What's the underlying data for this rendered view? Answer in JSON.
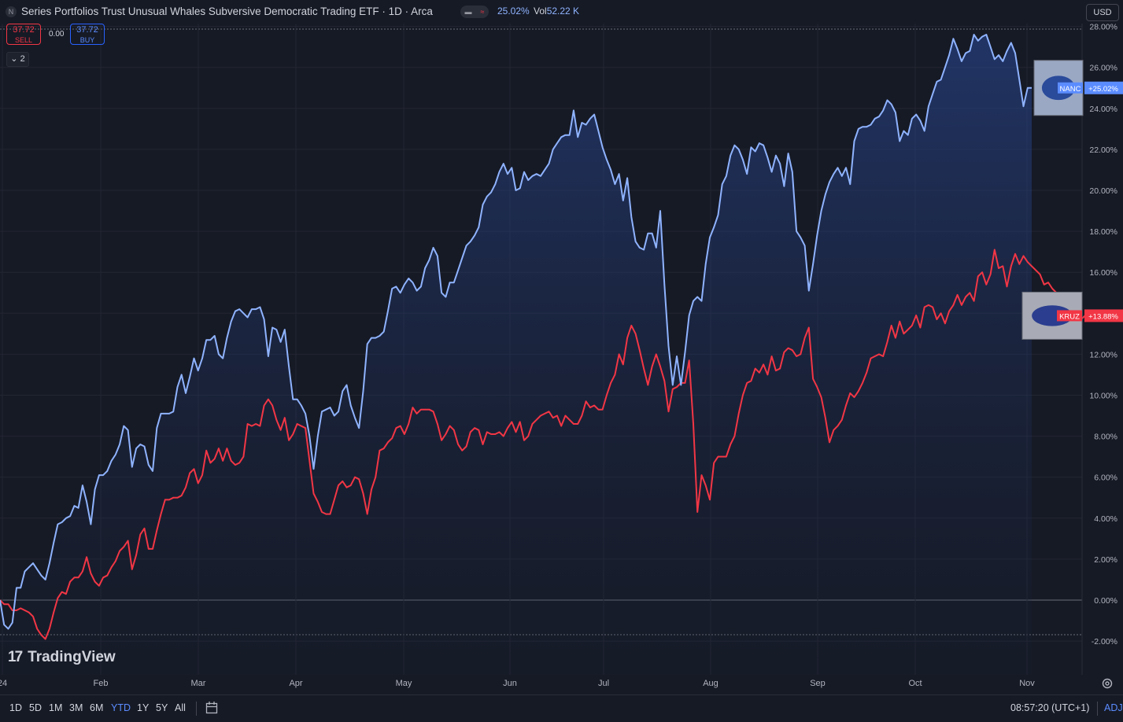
{
  "header": {
    "title": "Series Portfolios Trust Unusual Whales Subversive Democratic Trading ETF · 1D · Arca",
    "logo_letter": "N",
    "change_pct": "25.02%",
    "vol_label": "Vol",
    "vol_value": "52.22 K"
  },
  "trade": {
    "sell_price": "37.72",
    "sell_label": "SELL",
    "spread": "0.00",
    "buy_price": "37.72",
    "buy_label": "BUY"
  },
  "indicators_toggle": "2",
  "currency": "USD",
  "watermark": "TradingView",
  "timeframes": [
    "1D",
    "5D",
    "1M",
    "3M",
    "6M",
    "YTD",
    "1Y",
    "5Y",
    "All"
  ],
  "active_timeframe": "YTD",
  "clock": "08:57:20 (UTC+1)",
  "adj": "ADJ",
  "colors": {
    "background": "#161a25",
    "nanc_line": "#8fb3ff",
    "kruz_line": "#f23645",
    "grid": "#232632"
  },
  "chart_data": {
    "type": "line",
    "y_unit": "%",
    "ylim": [
      -2.5,
      28.5
    ],
    "yticks": [
      "28.00%",
      "26.00%",
      "24.00%",
      "22.00%",
      "20.00%",
      "18.00%",
      "16.00%",
      "14.00%",
      "12.00%",
      "10.00%",
      "8.00%",
      "6.00%",
      "4.00%",
      "2.00%",
      "0.00%",
      "-2.00%"
    ],
    "xticks": [
      "24",
      "Feb",
      "Mar",
      "Apr",
      "May",
      "Jun",
      "Jul",
      "Aug",
      "Sep",
      "Oct",
      "Nov"
    ],
    "grid": true,
    "series": [
      {
        "name": "NANC",
        "last_label": "+25.02%",
        "values": [
          0.0,
          -1.2,
          -1.4,
          -1.1,
          0.6,
          0.6,
          1.4,
          1.6,
          1.8,
          1.5,
          1.2,
          1.0,
          1.8,
          2.8,
          3.7,
          3.8,
          4.0,
          4.1,
          4.6,
          4.5,
          5.6,
          4.8,
          3.7,
          5.4,
          6.1,
          6.1,
          6.3,
          6.8,
          7.1,
          7.6,
          8.5,
          8.3,
          6.5,
          7.4,
          7.6,
          7.5,
          6.6,
          6.3,
          8.4,
          9.1,
          9.1,
          9.1,
          9.2,
          10.4,
          11.0,
          10.1,
          10.9,
          11.8,
          11.2,
          11.8,
          12.7,
          12.7,
          12.9,
          12.0,
          11.8,
          12.8,
          13.6,
          14.1,
          14.2,
          14.0,
          13.8,
          14.2,
          14.2,
          14.3,
          13.7,
          11.9,
          13.3,
          13.2,
          12.6,
          13.2,
          11.4,
          9.8,
          9.8,
          9.5,
          9.1,
          8.0,
          6.4,
          8.0,
          9.2,
          9.3,
          9.4,
          9.0,
          9.2,
          10.2,
          10.5,
          9.5,
          8.9,
          8.4,
          10.2,
          12.5,
          12.8,
          12.8,
          12.9,
          13.1,
          14.1,
          15.2,
          15.3,
          15.0,
          15.4,
          15.7,
          15.5,
          15.1,
          15.3,
          16.2,
          16.6,
          17.2,
          16.8,
          15.0,
          14.8,
          15.5,
          15.5,
          16.1,
          16.7,
          17.3,
          17.5,
          17.8,
          18.2,
          19.3,
          19.7,
          19.9,
          20.3,
          20.9,
          21.3,
          20.8,
          21.1,
          20.0,
          20.1,
          20.9,
          20.5,
          20.7,
          20.8,
          20.7,
          21.0,
          21.3,
          22.0,
          22.3,
          22.6,
          22.7,
          22.7,
          23.9,
          22.6,
          23.3,
          23.2,
          23.5,
          23.7,
          22.9,
          22.1,
          21.5,
          21.0,
          20.3,
          20.8,
          19.5,
          20.6,
          18.7,
          17.5,
          17.2,
          17.1,
          17.9,
          17.9,
          17.2,
          19.0,
          15.4,
          12.4,
          10.5,
          11.9,
          10.5,
          12.1,
          13.9,
          14.6,
          14.8,
          14.6,
          16.4,
          17.7,
          18.2,
          18.8,
          20.3,
          20.7,
          21.7,
          22.2,
          22.0,
          21.5,
          20.8,
          22.1,
          21.9,
          22.3,
          22.2,
          21.6,
          20.9,
          21.7,
          21.3,
          20.2,
          21.8,
          20.9,
          18.0,
          17.7,
          17.3,
          15.1,
          16.4,
          17.8,
          19.0,
          19.8,
          20.4,
          20.8,
          21.1,
          20.7,
          21.1,
          20.3,
          22.4,
          23.0,
          23.1,
          23.1,
          23.2,
          23.5,
          23.6,
          23.9,
          24.4,
          24.2,
          23.8,
          22.4,
          22.9,
          22.7,
          23.5,
          23.7,
          23.4,
          22.9,
          24.1,
          24.7,
          25.3,
          25.4,
          26.0,
          26.6,
          27.4,
          26.9,
          26.3,
          26.7,
          26.8,
          27.6,
          27.3,
          27.5,
          27.6,
          27.0,
          26.4,
          26.6,
          26.3,
          26.8,
          27.2,
          26.7,
          25.4,
          24.1,
          25.0,
          25.0
        ]
      },
      {
        "name": "KRUZ",
        "last_label": "+13.88%",
        "values": [
          0.0,
          -0.2,
          -0.2,
          -0.5,
          -0.5,
          -0.4,
          -0.5,
          -0.6,
          -0.8,
          -1.4,
          -1.7,
          -1.9,
          -1.4,
          -0.6,
          0.1,
          0.4,
          0.3,
          0.9,
          1.1,
          1.1,
          1.4,
          2.1,
          1.3,
          0.9,
          0.7,
          1.1,
          1.2,
          1.6,
          1.9,
          2.4,
          2.6,
          2.9,
          1.5,
          2.2,
          3.2,
          3.5,
          2.5,
          2.5,
          3.4,
          4.2,
          4.9,
          4.9,
          5.0,
          5.0,
          5.1,
          5.5,
          6.2,
          6.4,
          5.7,
          6.1,
          7.3,
          6.7,
          6.9,
          7.4,
          6.8,
          7.4,
          6.8,
          6.6,
          6.7,
          7.0,
          8.6,
          8.5,
          8.6,
          8.5,
          9.5,
          9.8,
          9.5,
          8.8,
          8.3,
          8.9,
          7.8,
          8.1,
          8.6,
          8.5,
          8.4,
          6.8,
          5.2,
          4.8,
          4.3,
          4.2,
          4.2,
          4.9,
          5.6,
          5.8,
          5.5,
          5.6,
          6.0,
          5.9,
          5.2,
          4.2,
          5.4,
          6.0,
          7.3,
          7.4,
          7.7,
          7.9,
          8.4,
          8.5,
          8.1,
          8.6,
          9.4,
          9.1,
          9.3,
          9.3,
          9.3,
          9.2,
          8.6,
          7.8,
          8.1,
          8.5,
          8.3,
          7.6,
          7.3,
          7.5,
          8.2,
          8.4,
          8.3,
          7.6,
          8.2,
          8.1,
          8.1,
          8.2,
          8.0,
          8.4,
          8.7,
          8.2,
          8.7,
          7.8,
          8.0,
          8.6,
          8.8,
          9.0,
          9.1,
          9.2,
          8.9,
          9.0,
          8.5,
          9.0,
          8.8,
          8.6,
          8.6,
          9.0,
          9.7,
          9.4,
          9.5,
          9.3,
          9.3,
          10.0,
          10.6,
          11.0,
          12.0,
          11.5,
          12.8,
          13.4,
          13.0,
          12.2,
          11.3,
          10.5,
          11.4,
          12.0,
          11.4,
          10.7,
          9.2,
          10.3,
          10.4,
          10.6,
          10.6,
          11.7,
          8.6,
          4.3,
          6.1,
          5.6,
          4.9,
          6.7,
          7.0,
          7.0,
          7.0,
          7.6,
          8.0,
          9.1,
          10.0,
          10.6,
          10.7,
          11.3,
          11.1,
          11.5,
          11.0,
          11.9,
          11.2,
          11.3,
          12.1,
          12.3,
          12.2,
          11.9,
          12.0,
          12.8,
          13.3,
          10.8,
          10.4,
          9.9,
          8.9,
          7.7,
          8.3,
          8.5,
          8.8,
          9.5,
          10.1,
          9.9,
          10.2,
          10.6,
          11.1,
          11.8,
          11.9,
          12.0,
          11.9,
          12.6,
          13.4,
          12.8,
          13.6,
          13.0,
          13.2,
          13.4,
          13.9,
          13.3,
          14.3,
          14.4,
          14.3,
          13.7,
          14.0,
          13.5,
          14.1,
          14.4,
          14.9,
          14.4,
          14.8,
          15.0,
          14.6,
          15.8,
          16.0,
          15.4,
          15.9,
          17.1,
          16.2,
          16.3,
          15.3,
          16.3,
          16.9,
          16.4,
          16.8,
          16.5,
          16.3,
          16.1,
          15.9,
          15.4,
          15.5,
          15.2,
          15.0,
          14.5,
          15.0,
          14.9,
          14.6,
          14.3,
          13.7,
          13.9,
          13.88
        ]
      }
    ]
  }
}
